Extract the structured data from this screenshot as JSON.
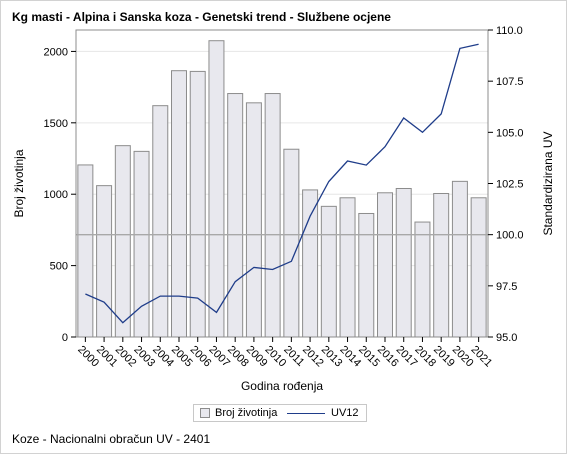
{
  "title": "Kg masti - Alpina i Sanska koza - Genetski trend - Službene ocjene",
  "footnote": "Koze - Nacionalni obračun UV - 2401",
  "chart_data": {
    "type": "bar+line",
    "categories": [
      "2000",
      "2001",
      "2002",
      "2003",
      "2004",
      "2005",
      "2006",
      "2007",
      "2008",
      "2009",
      "2010",
      "2011",
      "2012",
      "2013",
      "2014",
      "2015",
      "2016",
      "2017",
      "2018",
      "2019",
      "2020",
      "2021"
    ],
    "series": [
      {
        "name": "Broj životinja",
        "type": "bar",
        "axis": "left",
        "values": [
          1205,
          1060,
          1340,
          1300,
          1620,
          1865,
          1860,
          2075,
          1705,
          1640,
          1705,
          1315,
          1030,
          915,
          975,
          865,
          1010,
          1040,
          805,
          1005,
          1090,
          975
        ]
      },
      {
        "name": "UV12",
        "type": "line",
        "axis": "right",
        "values": [
          97.1,
          96.7,
          95.7,
          96.5,
          97.0,
          97.0,
          96.9,
          96.2,
          97.7,
          98.4,
          98.3,
          98.7,
          100.9,
          102.6,
          103.6,
          103.4,
          104.3,
          105.7,
          105.0,
          105.9,
          109.1,
          109.3
        ]
      }
    ],
    "xlabel": "Godina rođenja",
    "ylabel_left": "Broj životinja",
    "ylabel_right": "Standardizirana UV",
    "ylim_left": [
      0,
      2150
    ],
    "yticks_left": [
      0,
      500,
      1000,
      1500,
      2000
    ],
    "ylim_right": [
      95.0,
      110.0
    ],
    "yticks_right": [
      "95.0",
      "97.5",
      "100.0",
      "102.5",
      "105.0",
      "107.5",
      "110.0"
    ],
    "reference_line_right": 100.0,
    "grid": "horizontal",
    "legend_position": "bottom",
    "colors": {
      "bar_fill": "#e8e8ee",
      "bar_stroke": "#8c8c8c",
      "line": "#1f3d8a",
      "grid": "#e6e6e6",
      "reference": "#a8a8a8"
    }
  }
}
